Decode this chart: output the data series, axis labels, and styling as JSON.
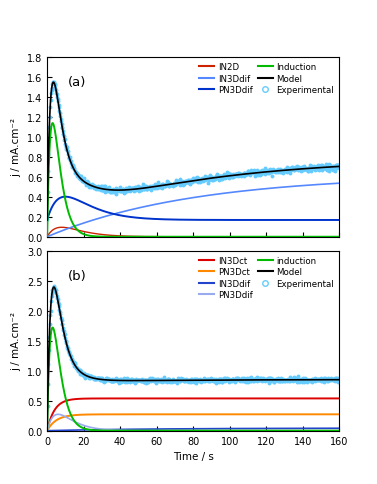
{
  "panel_a": {
    "label": "(a)",
    "ylim": [
      0,
      1.8
    ],
    "yticks": [
      0,
      0.2,
      0.4,
      0.6,
      0.8,
      1.0,
      1.2,
      1.4,
      1.6,
      1.8
    ],
    "ylabel": "j / mA.cm⁻²",
    "IN2D_color": "#cc2200",
    "IN3Ddif_color": "#5588ff",
    "PN3Ddif_color": "#0033cc",
    "Induction_color": "#00bb00",
    "Model_color": "#000000",
    "Exp_color": "#66ccff"
  },
  "panel_b": {
    "label": "(b)",
    "ylim": [
      0,
      3.0
    ],
    "yticks": [
      0,
      0.5,
      1.0,
      1.5,
      2.0,
      2.5,
      3.0
    ],
    "ylabel": "j / mA.cm⁻²",
    "IN3Dct_color": "#dd0000",
    "PN3Dct_color": "#ff8800",
    "IN3Ddif_color": "#2244cc",
    "PN3Ddif_color": "#99aaee",
    "induction_color": "#00bb00",
    "Model_color": "#000000",
    "Exp_color": "#66ccff"
  },
  "xlim": [
    0,
    160
  ],
  "xticks": [
    0,
    20,
    40,
    60,
    80,
    100,
    120,
    140,
    160
  ],
  "xlabel": "Time / s",
  "bg_color": "#ffffff"
}
